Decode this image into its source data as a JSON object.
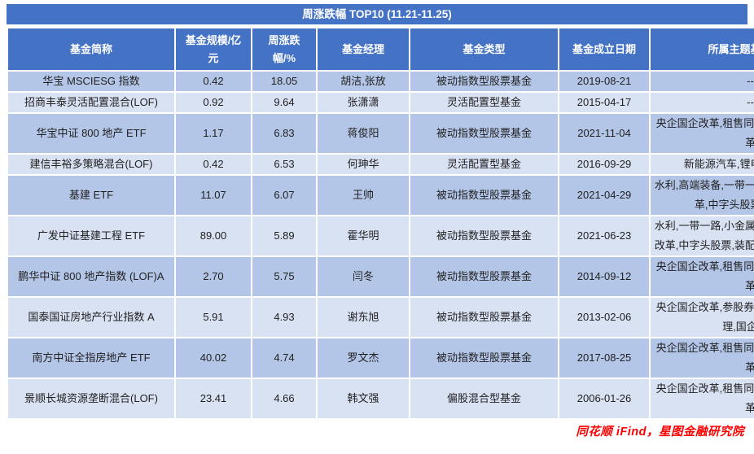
{
  "colors": {
    "header_bg": "#4472C4",
    "row_odd_bg": "#B4C6E7",
    "row_even_bg": "#D9E2F3",
    "header_text": "#ffffff",
    "body_text": "#1f1f1f",
    "source_text": "#FE0000"
  },
  "chart_data": {
    "type": "table",
    "title": "周涨跌幅 TOP10 (11.21-11.25)",
    "columns": [
      "基金简称",
      "基金规模/亿元",
      "周涨跌幅/%",
      "基金经理",
      "基金类型",
      "基金成立日期",
      "所属主题基金类别"
    ],
    "rows": [
      [
        "华宝 MSCIESG 指数",
        "0.42",
        "18.05",
        "胡洁,张放",
        "被动指数型股票基金",
        "2019-08-21",
        "--"
      ],
      [
        "招商丰泰灵活配置混合(LOF)",
        "0.92",
        "9.64",
        "张潇潇",
        "灵活配置型基金",
        "2015-04-17",
        "--"
      ],
      [
        "华宝中证 800 地产 ETF",
        "1.17",
        "6.83",
        "蒋俊阳",
        "被动指数型股票基金",
        "2021-11-04",
        "央企国企改革,租售同权,物业管理,国企改革"
      ],
      [
        "建信丰裕多策略混合(LOF)",
        "0.42",
        "6.53",
        "何珅华",
        "灵活配置型基金",
        "2016-09-29",
        "新能源汽车,锂电池,光伏概念"
      ],
      [
        "基建 ETF",
        "11.07",
        "6.07",
        "王帅",
        "被动指数型股票基金",
        "2021-04-29",
        "水利,高端装备,一带一路,高铁,央企国企改革,中字头股票,国企改革"
      ],
      [
        "广发中证基建工程 ETF",
        "89.00",
        "5.89",
        "霍华明",
        "被动指数型股票基金",
        "2021-06-23",
        "水利,一带一路,小金属概念,高铁,央企国企改革,中字头股票,装配式建筑,钴,国企改革"
      ],
      [
        "鹏华中证 800 地产指数 (LOF)A",
        "2.70",
        "5.75",
        "闫冬",
        "被动指数型股票基金",
        "2014-09-12",
        "央企国企改革,租售同权,物业管理,国企改革"
      ],
      [
        "国泰国证房地产行业指数 A",
        "5.91",
        "4.93",
        "谢东旭",
        "被动指数型股票基金",
        "2013-02-06",
        "央企国企改革,参股券商,租售同权,物业管理,国企改革"
      ],
      [
        "南方中证全指房地产 ETF",
        "40.02",
        "4.74",
        "罗文杰",
        "被动指数型股票基金",
        "2017-08-25",
        "央企国企改革,租售同权,物业管理,国企改革"
      ],
      [
        "景顺长城资源垄断混合(LOF)",
        "23.41",
        "4.66",
        "韩文强",
        "偏股混合型基金",
        "2006-01-26",
        "央企国企改革,租售同权,物业管理,国企改革"
      ]
    ],
    "source": "同花顺 iFind，星图金融研究院"
  }
}
